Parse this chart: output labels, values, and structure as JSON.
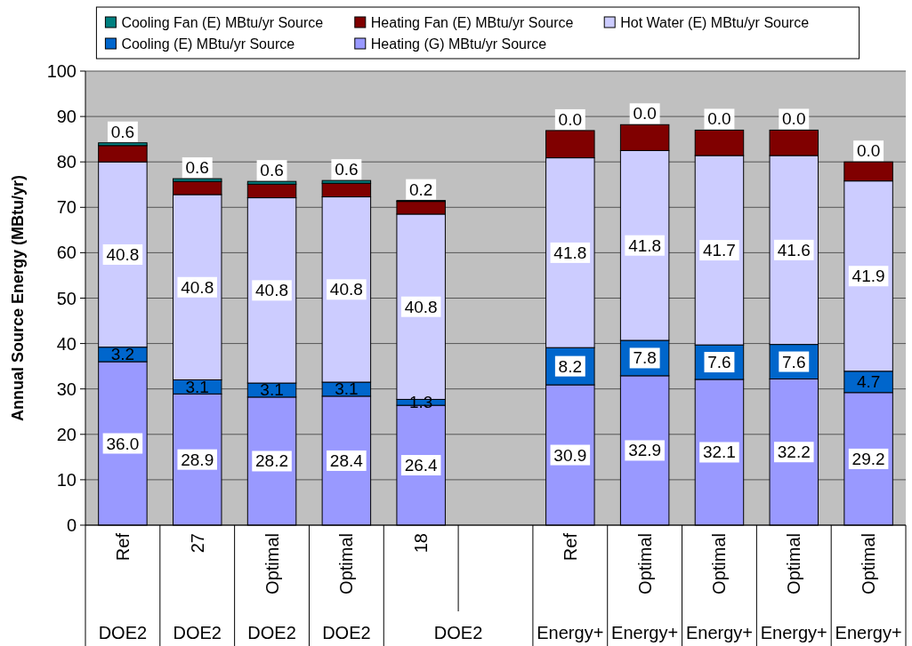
{
  "chart_data": {
    "type": "bar",
    "stacked": true,
    "categories": [
      "Ref",
      "27",
      "Optimal",
      "Optimal",
      "18",
      null,
      "Ref",
      "Optimal",
      "Optimal",
      "Optimal",
      "Optimal"
    ],
    "series": [
      {
        "name": "Heating (G) MBtu/yr Source",
        "color": "#9999ff",
        "values": [
          36.0,
          28.9,
          28.2,
          28.4,
          26.4,
          null,
          30.9,
          32.9,
          32.1,
          32.2,
          29.2
        ],
        "value_labels": [
          "36.0",
          "28.9",
          "28.2",
          "28.4",
          "26.4",
          null,
          "30.9",
          "32.9",
          "32.1",
          "32.2",
          "29.2"
        ]
      },
      {
        "name": "Cooling (E) MBtu/yr Source",
        "color": "#0066cc",
        "values": [
          3.2,
          3.1,
          3.1,
          3.1,
          1.3,
          null,
          8.2,
          7.8,
          7.6,
          7.6,
          4.7
        ],
        "value_labels": [
          "3.2",
          "3.1",
          "3.1",
          "3.1",
          "1.3",
          null,
          "8.2",
          "7.8",
          "7.6",
          "7.6",
          "4.7"
        ]
      },
      {
        "name": "Hot Water (E) MBtu/yr Source",
        "color": "#ccccff",
        "values": [
          40.8,
          40.8,
          40.8,
          40.8,
          40.8,
          null,
          41.8,
          41.8,
          41.7,
          41.6,
          41.9
        ],
        "value_labels": [
          "40.8",
          "40.8",
          "40.8",
          "40.8",
          "40.8",
          null,
          "41.8",
          "41.8",
          "41.7",
          "41.6",
          "41.9"
        ]
      },
      {
        "name": "Heating Fan (E) MBtu/yr Source",
        "color": "#800000",
        "values": [
          3.6,
          2.9,
          3.0,
          3.0,
          2.8,
          null,
          6.0,
          5.7,
          5.6,
          5.6,
          4.2
        ]
      },
      {
        "name": "Cooling Fan (E) MBtu/yr Source",
        "color": "#008080",
        "values": [
          0.6,
          0.6,
          0.6,
          0.6,
          0.2,
          null,
          0.0,
          0.0,
          0.0,
          0.0,
          0.0
        ],
        "value_labels": [
          "0.6",
          "0.6",
          "0.6",
          "0.6",
          "0.2",
          null,
          "0.0",
          "0.0",
          "0.0",
          "0.0",
          "0.0"
        ]
      }
    ],
    "ylim": [
      0,
      100
    ],
    "yticks": [
      0,
      10,
      20,
      30,
      40,
      50,
      60,
      70,
      80,
      90,
      100
    ],
    "grid": "y",
    "legend": "top",
    "ylabel": "Annual Source Energy (MBtu/yr)",
    "annotations": [
      "DOE2",
      "DOE2",
      "DOE2",
      "DOE2",
      "DOE2",
      "Energy+",
      "Energy+",
      "Energy+",
      "Energy+",
      "Energy+"
    ]
  }
}
